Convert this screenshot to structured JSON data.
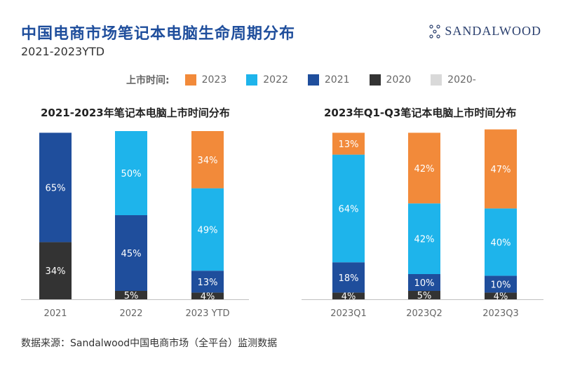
{
  "header": {
    "title": "中国电商市场笔记本电脑生命周期分布",
    "subtitle": "2021-2023YTD",
    "logo_text": "SANDALWOOD"
  },
  "legend": {
    "title": "上市时间:",
    "items": [
      {
        "label": "2023",
        "color": "#F28A3A"
      },
      {
        "label": "2022",
        "color": "#1EB4EB"
      },
      {
        "label": "2021",
        "color": "#1F4E9C"
      },
      {
        "label": "2020",
        "color": "#333333"
      },
      {
        "label": "2020-",
        "color": "#D9D9D9"
      }
    ]
  },
  "chart_data": [
    {
      "type": "bar",
      "stacked": true,
      "title": "2021-2023年笔记本电脑上市时间分布",
      "categories": [
        "2021",
        "2022",
        "2023 YTD"
      ],
      "ylim": [
        0,
        100
      ],
      "series": [
        {
          "name": "2020",
          "color": "#333333",
          "values": [
            34,
            5,
            4
          ]
        },
        {
          "name": "2021",
          "color": "#1F4E9C",
          "values": [
            65,
            45,
            13
          ]
        },
        {
          "name": "2022",
          "color": "#1EB4EB",
          "values": [
            null,
            50,
            49
          ]
        },
        {
          "name": "2023",
          "color": "#F28A3A",
          "values": [
            null,
            null,
            34
          ]
        }
      ]
    },
    {
      "type": "bar",
      "stacked": true,
      "title": "2023年Q1-Q3笔记本电脑上市时间分布",
      "categories": [
        "2023Q1",
        "2023Q2",
        "2023Q3"
      ],
      "ylim": [
        0,
        100
      ],
      "series": [
        {
          "name": "2020",
          "color": "#333333",
          "values": [
            4,
            5,
            4
          ]
        },
        {
          "name": "2021",
          "color": "#1F4E9C",
          "values": [
            18,
            10,
            10
          ]
        },
        {
          "name": "2022",
          "color": "#1EB4EB",
          "values": [
            64,
            42,
            40
          ]
        },
        {
          "name": "2023",
          "color": "#F28A3A",
          "values": [
            13,
            42,
            47
          ]
        }
      ]
    }
  ],
  "footer": {
    "source": "数据来源：Sandalwood中国电商市场（全平台）监测数据"
  }
}
